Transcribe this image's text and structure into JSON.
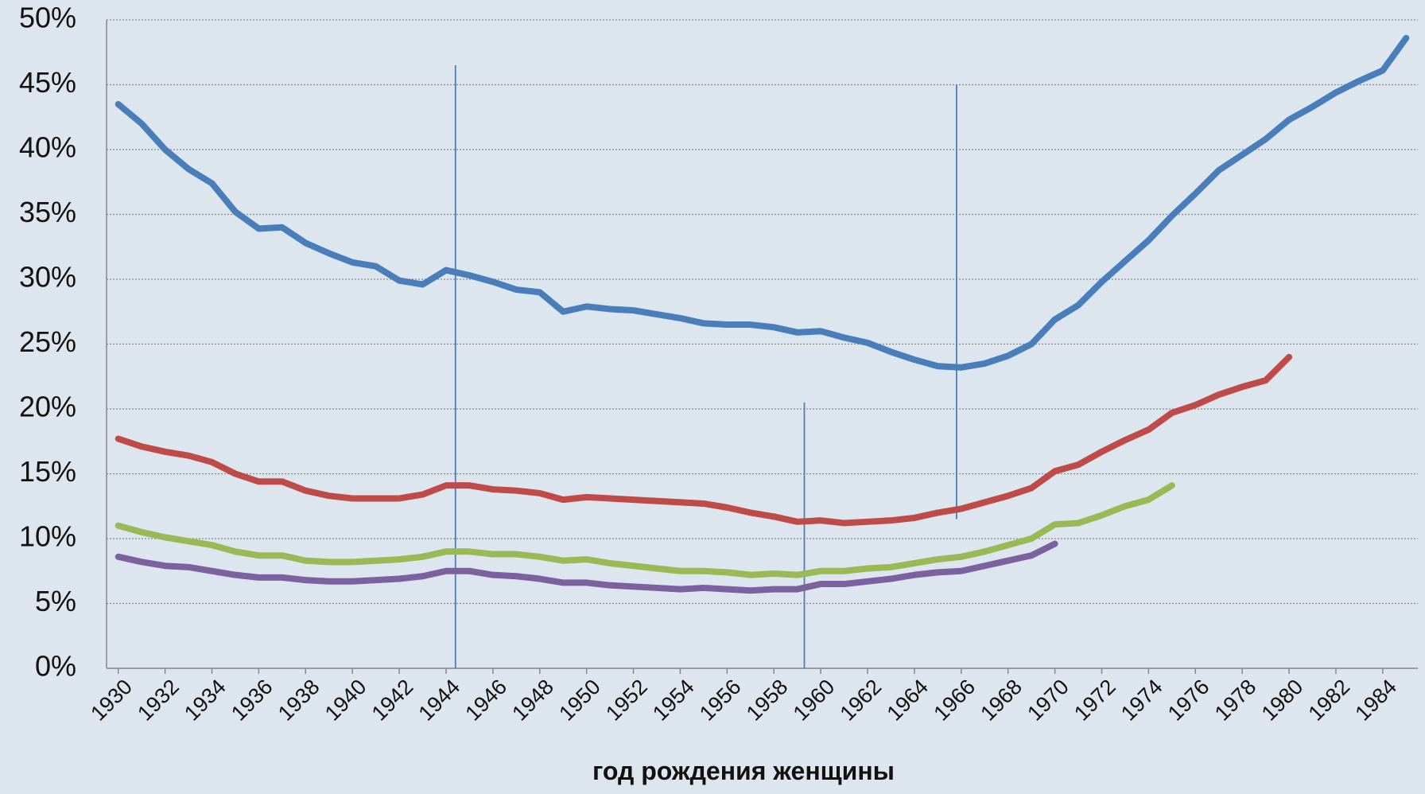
{
  "chart_data": {
    "type": "line",
    "x_label": "год рождения женщины",
    "x": [
      1930,
      1931,
      1932,
      1933,
      1934,
      1935,
      1936,
      1937,
      1938,
      1939,
      1940,
      1941,
      1942,
      1943,
      1944,
      1945,
      1946,
      1947,
      1948,
      1949,
      1950,
      1951,
      1952,
      1953,
      1954,
      1955,
      1956,
      1957,
      1958,
      1959,
      1960,
      1961,
      1962,
      1963,
      1964,
      1965,
      1966,
      1967,
      1968,
      1969,
      1970,
      1971,
      1972,
      1973,
      1974,
      1975,
      1976,
      1977,
      1978,
      1979,
      1980,
      1981,
      1982,
      1983,
      1984,
      1985
    ],
    "series": [
      {
        "color": "#4a7ebb",
        "values": [
          43.5,
          42,
          40,
          38.5,
          37.4,
          35.2,
          33.9,
          34,
          32.8,
          32,
          31.3,
          31,
          29.9,
          29.6,
          30.7,
          30.3,
          29.8,
          29.2,
          29,
          27.5,
          27.9,
          27.7,
          27.6,
          27.3,
          27,
          26.6,
          26.5,
          26.5,
          26.3,
          25.9,
          26,
          25.5,
          25.1,
          24.4,
          23.8,
          23.3,
          23.2,
          23.5,
          24.1,
          25,
          26.9,
          28,
          29.8,
          31.4,
          33,
          34.9,
          36.6,
          38.4,
          39.6,
          40.8,
          42.3,
          43.3,
          44.4,
          45.3,
          46.1,
          48.6
        ]
      },
      {
        "color": "#be4b48",
        "values": [
          17.7,
          17.1,
          16.7,
          16.4,
          15.9,
          15,
          14.4,
          14.4,
          13.7,
          13.3,
          13.1,
          13.1,
          13.1,
          13.4,
          14.1,
          14.1,
          13.8,
          13.7,
          13.5,
          13,
          13.2,
          13.1,
          13,
          12.9,
          12.8,
          12.7,
          12.4,
          12,
          11.7,
          11.3,
          11.4,
          11.2,
          11.3,
          11.4,
          11.6,
          12,
          12.3,
          12.8,
          13.3,
          13.9,
          15.2,
          15.7,
          16.7,
          17.6,
          18.4,
          19.7,
          20.3,
          21.1,
          21.7,
          22.2,
          24,
          null,
          null,
          null,
          null,
          null
        ]
      },
      {
        "color": "#98b954",
        "values": [
          11,
          10.5,
          10.1,
          9.8,
          9.5,
          9,
          8.7,
          8.7,
          8.3,
          8.2,
          8.2,
          8.3,
          8.4,
          8.6,
          9,
          9,
          8.8,
          8.8,
          8.6,
          8.3,
          8.4,
          8.1,
          7.9,
          7.7,
          7.5,
          7.5,
          7.4,
          7.2,
          7.3,
          7.2,
          7.5,
          7.5,
          7.7,
          7.8,
          8.1,
          8.4,
          8.6,
          9,
          9.5,
          10,
          11.1,
          11.2,
          11.8,
          12.5,
          13,
          14.1,
          null,
          null,
          null,
          null,
          null,
          null,
          null,
          null,
          null,
          null
        ]
      },
      {
        "color": "#7d60a0",
        "values": [
          8.6,
          8.2,
          7.9,
          7.8,
          7.5,
          7.2,
          7,
          7,
          6.8,
          6.7,
          6.7,
          6.8,
          6.9,
          7.1,
          7.5,
          7.5,
          7.2,
          7.1,
          6.9,
          6.6,
          6.6,
          6.4,
          6.3,
          6.2,
          6.1,
          6.2,
          6.1,
          6,
          6.1,
          6.1,
          6.5,
          6.5,
          6.7,
          6.9,
          7.2,
          7.4,
          7.5,
          7.9,
          8.3,
          8.7,
          9.6,
          null,
          null,
          null,
          null,
          null,
          null,
          null,
          null,
          null,
          null,
          null,
          null,
          null,
          null,
          null
        ]
      }
    ],
    "vlines": [
      {
        "x": 1944.4,
        "y": [
          0,
          46.5
        ],
        "color": "#4a7ebb"
      },
      {
        "x": 1959.3,
        "y": [
          0,
          20.5
        ],
        "color": "#4a7ebb"
      },
      {
        "x": 1965.8,
        "y": [
          11.5,
          45
        ],
        "color": "#4a7ebb"
      }
    ],
    "xlim": [
      1929.5,
      1985.5
    ],
    "xticks": [
      1930,
      1932,
      1934,
      1936,
      1938,
      1940,
      1942,
      1944,
      1946,
      1948,
      1950,
      1952,
      1954,
      1956,
      1958,
      1960,
      1962,
      1964,
      1966,
      1968,
      1970,
      1972,
      1974,
      1976,
      1978,
      1980,
      1982,
      1984
    ],
    "ylim": [
      0,
      50
    ],
    "yticks": [
      {
        "value": 0,
        "label": "0%"
      },
      {
        "value": 5,
        "label": "5%"
      },
      {
        "value": 10,
        "label": "10%"
      },
      {
        "value": 15,
        "label": "15%"
      },
      {
        "value": 20,
        "label": "20%"
      },
      {
        "value": 25,
        "label": "25%"
      },
      {
        "value": 30,
        "label": "30%"
      },
      {
        "value": 35,
        "label": "35%"
      },
      {
        "value": 40,
        "label": "40%"
      },
      {
        "value": 45,
        "label": "45%"
      },
      {
        "value": 50,
        "label": "50%"
      }
    ],
    "grid": true
  }
}
